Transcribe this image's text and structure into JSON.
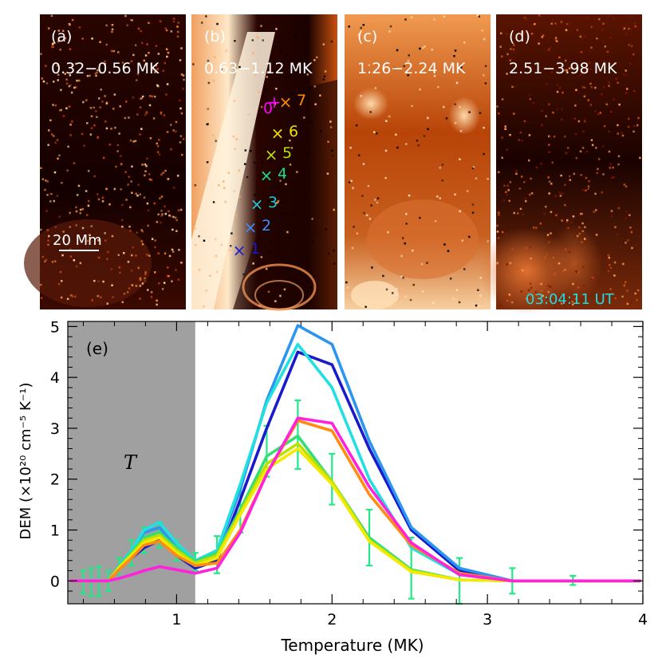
{
  "panels": [
    {
      "label": "(a)",
      "range": "0.32−0.56 MK"
    },
    {
      "label": "(b)",
      "range": "0.63−1.12 MK"
    },
    {
      "label": "(c)",
      "range": "1.26−2.24 MK"
    },
    {
      "label": "(d)",
      "range": "2.51−3.98 MK"
    }
  ],
  "scale_bar_label": "20 Mm",
  "timestamp": "03:04:11 UT",
  "markers": [
    {
      "label": "0",
      "symbol": "+",
      "color": "#ff00ff"
    },
    {
      "label": "1",
      "symbol": "×",
      "color": "#1a1acc"
    },
    {
      "label": "2",
      "symbol": "×",
      "color": "#3a8cff"
    },
    {
      "label": "3",
      "symbol": "×",
      "color": "#22c8d8"
    },
    {
      "label": "4",
      "symbol": "×",
      "color": "#22dd88"
    },
    {
      "label": "5",
      "symbol": "×",
      "color": "#b8e000"
    },
    {
      "label": "6",
      "symbol": "×",
      "color": "#f0e000"
    },
    {
      "label": "7",
      "symbol": "×",
      "color": "#ff8a00"
    }
  ],
  "chart_data": {
    "type": "line",
    "panel_label": "(e)",
    "xlabel": "Temperature (MK)",
    "ylabel": "DEM (×10²⁰ cm⁻⁵ K⁻¹)",
    "xlim": [
      0.3,
      4.0
    ],
    "ylim": [
      -0.45,
      5.1
    ],
    "xticks": [
      1,
      2,
      3,
      4
    ],
    "yticks": [
      0,
      1,
      2,
      3,
      4,
      5
    ],
    "shaded_region": {
      "x0": 0.3,
      "x1": 1.12,
      "label": "T",
      "color": "#a0a0a0"
    },
    "x": [
      0.32,
      0.4,
      0.5,
      0.56,
      0.63,
      0.71,
      0.79,
      0.89,
      1.0,
      1.12,
      1.26,
      1.41,
      1.58,
      1.78,
      2.0,
      2.24,
      2.51,
      2.82,
      3.16,
      3.55,
      3.98
    ],
    "series": [
      {
        "color": "#1a1acc",
        "values": [
          0,
          0,
          0,
          0,
          0.25,
          0.45,
          0.65,
          0.8,
          0.5,
          0.25,
          0.4,
          1.6,
          3.0,
          4.5,
          4.25,
          2.6,
          1.0,
          0.2,
          0,
          0,
          0
        ]
      },
      {
        "color": "#2b95f0",
        "values": [
          0,
          0,
          0,
          0,
          0.3,
          0.6,
          0.95,
          1.05,
          0.65,
          0.35,
          0.55,
          1.8,
          3.55,
          5.02,
          4.65,
          2.75,
          1.05,
          0.25,
          0,
          0,
          0
        ]
      },
      {
        "color": "#22e0e0",
        "values": [
          0,
          0,
          0,
          0,
          0.3,
          0.6,
          1.0,
          1.15,
          0.75,
          0.4,
          0.6,
          1.9,
          3.5,
          4.65,
          3.8,
          2.0,
          0.65,
          0.12,
          0,
          0,
          0
        ]
      },
      {
        "color": "#33dd77",
        "values": [
          0,
          0,
          0,
          0,
          0.28,
          0.55,
          0.85,
          0.95,
          0.65,
          0.38,
          0.55,
          1.4,
          2.45,
          2.85,
          1.95,
          0.85,
          0.22,
          0.02,
          0,
          0,
          0
        ]
      },
      {
        "color": "#bde000",
        "values": [
          0,
          0,
          0,
          0,
          0.27,
          0.52,
          0.8,
          0.9,
          0.6,
          0.35,
          0.5,
          1.35,
          2.3,
          2.7,
          1.95,
          0.8,
          0.2,
          0.02,
          0,
          0,
          0
        ]
      },
      {
        "color": "#f2ea00",
        "values": [
          0,
          0,
          0,
          0,
          0.25,
          0.5,
          0.75,
          0.85,
          0.55,
          0.3,
          0.45,
          1.3,
          2.2,
          2.6,
          1.9,
          0.78,
          0.18,
          0.02,
          0,
          0,
          0
        ]
      },
      {
        "color": "#ff8c10",
        "values": [
          0,
          0,
          0,
          0,
          0.22,
          0.45,
          0.7,
          0.78,
          0.5,
          0.3,
          0.35,
          1.0,
          2.1,
          3.15,
          2.95,
          1.7,
          0.7,
          0.15,
          0,
          0,
          0
        ]
      },
      {
        "color": "#ff22dd",
        "values": [
          0,
          0,
          0,
          0,
          0.05,
          0.12,
          0.2,
          0.28,
          0.22,
          0.15,
          0.25,
          0.95,
          2.1,
          3.2,
          3.1,
          1.85,
          0.75,
          0.12,
          0,
          0,
          0
        ]
      }
    ],
    "error_bars": {
      "color": "#22e888",
      "points": [
        {
          "x": 0.4,
          "low": -0.25,
          "high": 0.2
        },
        {
          "x": 0.45,
          "low": -0.3,
          "high": 0.25
        },
        {
          "x": 0.5,
          "low": -0.3,
          "high": 0.28
        },
        {
          "x": 0.56,
          "low": -0.2,
          "high": 0.2
        },
        {
          "x": 0.63,
          "low": 0.05,
          "high": 0.45
        },
        {
          "x": 0.71,
          "low": 0.3,
          "high": 0.8
        },
        {
          "x": 0.79,
          "low": 0.55,
          "high": 1.05
        },
        {
          "x": 0.89,
          "low": 0.65,
          "high": 1.15
        },
        {
          "x": 1.0,
          "low": 0.4,
          "high": 0.8
        },
        {
          "x": 1.12,
          "low": 0.2,
          "high": 0.55
        },
        {
          "x": 1.26,
          "low": 0.15,
          "high": 0.88
        },
        {
          "x": 1.41,
          "low": 0.95,
          "high": 1.75
        },
        {
          "x": 1.58,
          "low": 2.05,
          "high": 3.05
        },
        {
          "x": 1.78,
          "low": 2.2,
          "high": 3.55
        },
        {
          "x": 2.0,
          "low": 1.5,
          "high": 2.5
        },
        {
          "x": 2.24,
          "low": 0.3,
          "high": 1.4
        },
        {
          "x": 2.51,
          "low": -0.35,
          "high": 0.85
        },
        {
          "x": 2.82,
          "low": -0.45,
          "high": 0.45
        },
        {
          "x": 3.16,
          "low": -0.25,
          "high": 0.25
        },
        {
          "x": 3.55,
          "low": -0.08,
          "high": 0.1
        }
      ]
    }
  }
}
